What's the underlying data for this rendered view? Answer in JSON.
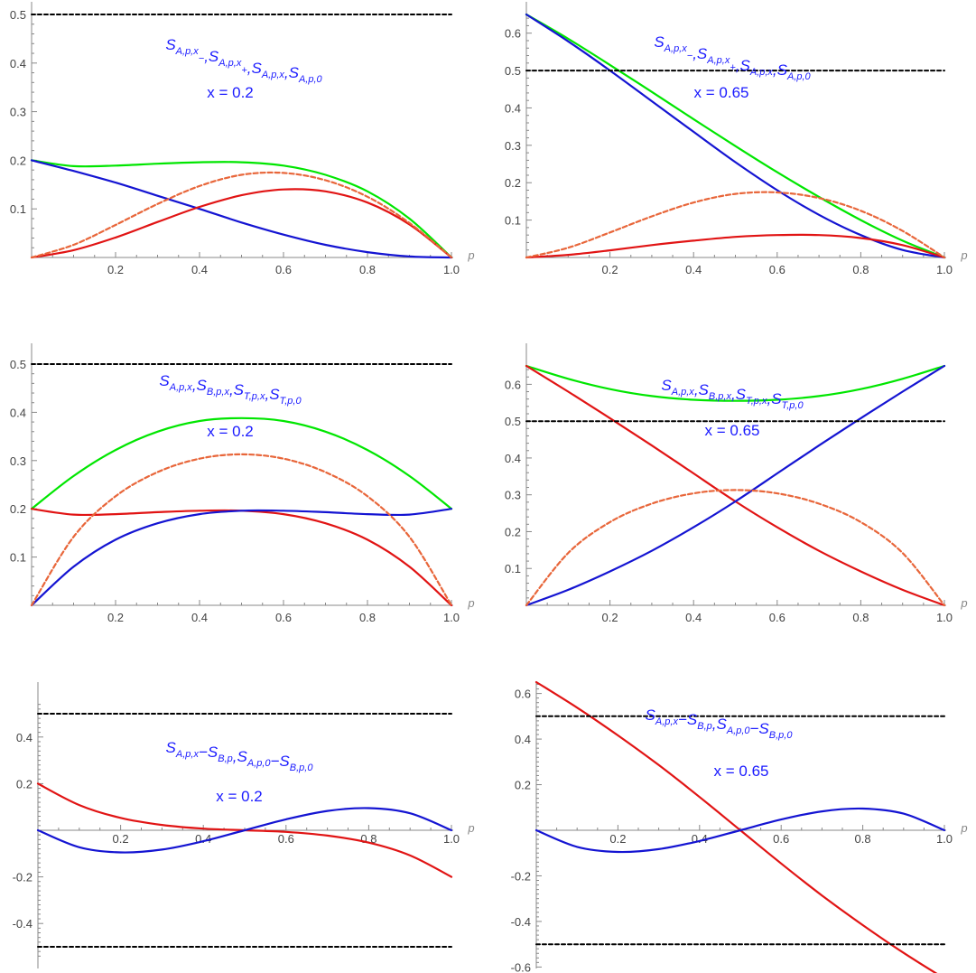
{
  "chart_data": [
    {
      "type": "line",
      "title": "S_{A,p,x_-},S_{A,p,x_+},S_{A,p,x},S_{A,p,0}",
      "title_parts": [
        {
          "t": "S",
          "s": "A,p,x"
        },
        {
          "t": "",
          "s": "−"
        },
        {
          "t": ",S",
          "s": "A,p,x"
        },
        {
          "t": "",
          "s": "+"
        },
        {
          "t": ",S",
          "s": "A,p,x"
        },
        {
          "t": ",S",
          "s": "A,p,0"
        }
      ],
      "annotation": "x = 0.2",
      "xlabel": "p",
      "xlim": [
        0,
        1
      ],
      "ylim": [
        -0.005,
        0.5
      ],
      "xticks": [
        0.2,
        0.4,
        0.6,
        0.8,
        1.0
      ],
      "xtick_labels": [
        "0.2",
        "0.4",
        "0.6",
        "0.8",
        "1.0"
      ],
      "yticks": [
        0.1,
        0.2,
        0.3,
        0.4,
        0.5
      ],
      "ytick_labels": [
        "0.1",
        "0.2",
        "0.3",
        "0.4",
        "0.5"
      ],
      "x": [
        0,
        0.1,
        0.2,
        0.3,
        0.4,
        0.5,
        0.6,
        0.7,
        0.8,
        0.9,
        1.0
      ],
      "series": [
        {
          "color": "#00e600",
          "dash": false,
          "values": [
            0.2,
            0.188,
            0.189,
            0.193,
            0.196,
            0.196,
            0.189,
            0.17,
            0.136,
            0.08,
            0
          ]
        },
        {
          "color": "#1414d2",
          "dash": false,
          "values": [
            0.2,
            0.178,
            0.154,
            0.127,
            0.1,
            0.072,
            0.047,
            0.026,
            0.011,
            0.002,
            0
          ]
        },
        {
          "color": "#e11414",
          "dash": false,
          "values": [
            0,
            0.015,
            0.041,
            0.073,
            0.104,
            0.128,
            0.14,
            0.136,
            0.113,
            0.068,
            0
          ]
        },
        {
          "color": "#e8663a",
          "dash": true,
          "values": [
            0,
            0.026,
            0.067,
            0.11,
            0.147,
            0.17,
            0.174,
            0.159,
            0.125,
            0.071,
            0
          ]
        },
        {
          "color": "#000000",
          "dash": true,
          "values": [
            0.5,
            0.5,
            0.5,
            0.5,
            0.5,
            0.5,
            0.5,
            0.5,
            0.5,
            0.5,
            0.5
          ]
        }
      ]
    },
    {
      "type": "line",
      "title": "S_{A,p,x_-},S_{A,p,x_+},S_{A,p,x},S_{A,p,0}",
      "title_parts": [
        {
          "t": "S",
          "s": "A,p,x"
        },
        {
          "t": "",
          "s": "−"
        },
        {
          "t": ",S",
          "s": "A,p,x"
        },
        {
          "t": "",
          "s": "+"
        },
        {
          "t": ",S",
          "s": "A,p,x"
        },
        {
          "t": ",S",
          "s": "A,p,0"
        }
      ],
      "annotation": "x = 0.65",
      "xlabel": "p",
      "xlim": [
        0,
        1
      ],
      "ylim": [
        -0.005,
        0.65
      ],
      "xticks": [
        0.2,
        0.4,
        0.6,
        0.8,
        1.0
      ],
      "xtick_labels": [
        "0.2",
        "0.4",
        "0.6",
        "0.8",
        "1.0"
      ],
      "yticks": [
        0.1,
        0.2,
        0.3,
        0.4,
        0.5,
        0.6
      ],
      "ytick_labels": [
        "0.1",
        "0.2",
        "0.3",
        "0.4",
        "0.5",
        "0.6"
      ],
      "x": [
        0,
        0.1,
        0.2,
        0.3,
        0.4,
        0.5,
        0.6,
        0.7,
        0.8,
        0.9,
        1.0
      ],
      "series": [
        {
          "color": "#00e600",
          "dash": false,
          "values": [
            0.65,
            0.585,
            0.515,
            0.443,
            0.37,
            0.298,
            0.228,
            0.162,
            0.1,
            0.045,
            0
          ]
        },
        {
          "color": "#1414d2",
          "dash": false,
          "values": [
            0.65,
            0.578,
            0.5,
            0.418,
            0.336,
            0.255,
            0.18,
            0.114,
            0.06,
            0.02,
            0
          ]
        },
        {
          "color": "#e11414",
          "dash": false,
          "values": [
            0,
            0.007,
            0.019,
            0.033,
            0.045,
            0.055,
            0.06,
            0.06,
            0.052,
            0.033,
            0
          ]
        },
        {
          "color": "#e8663a",
          "dash": true,
          "values": [
            0,
            0.026,
            0.067,
            0.11,
            0.147,
            0.17,
            0.174,
            0.159,
            0.125,
            0.071,
            0
          ]
        },
        {
          "color": "#000000",
          "dash": true,
          "values": [
            0.5,
            0.5,
            0.5,
            0.5,
            0.5,
            0.5,
            0.5,
            0.5,
            0.5,
            0.5,
            0.5
          ]
        }
      ]
    },
    {
      "type": "line",
      "title": "S_{A,p,x},S_{B,p,x},S_{T,p,x},S_{T,p,0}",
      "title_parts": [
        {
          "t": "S",
          "s": "A,p,x"
        },
        {
          "t": ",S",
          "s": "B,p,x"
        },
        {
          "t": ",S",
          "s": "T,p,x"
        },
        {
          "t": ",S",
          "s": "T,p,0"
        }
      ],
      "annotation": "x = 0.2",
      "xlabel": "p",
      "xlim": [
        0,
        1
      ],
      "ylim": [
        -0.005,
        0.5
      ],
      "xticks": [
        0.2,
        0.4,
        0.6,
        0.8,
        1.0
      ],
      "xtick_labels": [
        "0.2",
        "0.4",
        "0.6",
        "0.8",
        "1.0"
      ],
      "yticks": [
        0.1,
        0.2,
        0.3,
        0.4,
        0.5
      ],
      "ytick_labels": [
        "0.1",
        "0.2",
        "0.3",
        "0.4",
        "0.5"
      ],
      "x": [
        0,
        0.1,
        0.2,
        0.3,
        0.4,
        0.5,
        0.6,
        0.7,
        0.8,
        0.9,
        1.0
      ],
      "series": [
        {
          "color": "#00e600",
          "dash": false,
          "values": [
            0.2,
            0.268,
            0.322,
            0.36,
            0.382,
            0.388,
            0.382,
            0.36,
            0.322,
            0.268,
            0.2
          ]
        },
        {
          "color": "#e11414",
          "dash": false,
          "values": [
            0.2,
            0.188,
            0.189,
            0.193,
            0.196,
            0.196,
            0.189,
            0.17,
            0.136,
            0.08,
            0
          ]
        },
        {
          "color": "#1414d2",
          "dash": false,
          "values": [
            0,
            0.08,
            0.136,
            0.17,
            0.189,
            0.196,
            0.196,
            0.193,
            0.189,
            0.188,
            0.2
          ]
        },
        {
          "color": "#e8663a",
          "dash": true,
          "values": [
            0,
            0.142,
            0.226,
            0.276,
            0.304,
            0.313,
            0.304,
            0.276,
            0.226,
            0.142,
            0
          ]
        },
        {
          "color": "#000000",
          "dash": true,
          "values": [
            0.5,
            0.5,
            0.5,
            0.5,
            0.5,
            0.5,
            0.5,
            0.5,
            0.5,
            0.5,
            0.5
          ]
        }
      ]
    },
    {
      "type": "line",
      "title": "S_{A,p,x},S_{B,p,x},S_{T,p,x},S_{T,p,0}",
      "title_parts": [
        {
          "t": "S",
          "s": "A,p,x"
        },
        {
          "t": ",S",
          "s": "B,p,x"
        },
        {
          "t": ",S",
          "s": "T,p,x"
        },
        {
          "t": ",S",
          "s": "T,p,0"
        }
      ],
      "annotation": "x = 0.65",
      "xlabel": "p",
      "xlim": [
        0,
        1
      ],
      "ylim": [
        -0.005,
        0.65
      ],
      "xticks": [
        0.2,
        0.4,
        0.6,
        0.8,
        1.0
      ],
      "xtick_labels": [
        "0.2",
        "0.4",
        "0.6",
        "0.8",
        "1.0"
      ],
      "yticks": [
        0.1,
        0.2,
        0.3,
        0.4,
        0.5,
        0.6
      ],
      "ytick_labels": [
        "0.1",
        "0.2",
        "0.3",
        "0.4",
        "0.5",
        "0.6"
      ],
      "x": [
        0,
        0.1,
        0.2,
        0.3,
        0.4,
        0.5,
        0.6,
        0.7,
        0.8,
        0.9,
        1.0
      ],
      "series": [
        {
          "color": "#00e600",
          "dash": false,
          "values": [
            0.65,
            0.615,
            0.587,
            0.568,
            0.558,
            0.555,
            0.558,
            0.568,
            0.587,
            0.615,
            0.65
          ]
        },
        {
          "color": "#e11414",
          "dash": false,
          "values": [
            0.65,
            0.58,
            0.508,
            0.434,
            0.358,
            0.282,
            0.212,
            0.148,
            0.092,
            0.042,
            0
          ]
        },
        {
          "color": "#1414d2",
          "dash": false,
          "values": [
            0,
            0.042,
            0.092,
            0.148,
            0.212,
            0.282,
            0.358,
            0.434,
            0.508,
            0.58,
            0.65
          ]
        },
        {
          "color": "#e8663a",
          "dash": true,
          "values": [
            0,
            0.142,
            0.226,
            0.276,
            0.304,
            0.313,
            0.304,
            0.276,
            0.226,
            0.142,
            0
          ]
        },
        {
          "color": "#000000",
          "dash": true,
          "values": [
            0.5,
            0.5,
            0.5,
            0.5,
            0.5,
            0.5,
            0.5,
            0.5,
            0.5,
            0.5,
            0.5
          ]
        }
      ]
    },
    {
      "type": "line",
      "title": "S_{A,p,x}−S_{B,p},S_{A,p,0}−S_{B,p,0}",
      "title_parts": [
        {
          "t": "S",
          "s": "A,p,x"
        },
        {
          "t": "−S",
          "s": "B,p"
        },
        {
          "t": ",S",
          "s": "A,p,0"
        },
        {
          "t": "−S",
          "s": "B,p,0"
        }
      ],
      "annotation": "x = 0.2",
      "xlabel": "p",
      "xlim": [
        0,
        1
      ],
      "ylim": [
        -0.55,
        0.55
      ],
      "xticks": [
        0.2,
        0.4,
        0.6,
        0.8,
        1.0
      ],
      "xtick_labels": [
        "0.2",
        "0.4",
        "0.6",
        "0.8",
        "1.0"
      ],
      "yticks": [
        -0.4,
        -0.2,
        0.2,
        0.4
      ],
      "ytick_labels": [
        "-0.4",
        "-0.2",
        "0.2",
        "0.4"
      ],
      "x": [
        0,
        0.1,
        0.2,
        0.3,
        0.4,
        0.5,
        0.6,
        0.7,
        0.8,
        0.9,
        1.0
      ],
      "series": [
        {
          "color": "#e11414",
          "dash": false,
          "values": [
            0.2,
            0.108,
            0.053,
            0.023,
            0.007,
            0,
            -0.007,
            -0.023,
            -0.053,
            -0.108,
            -0.2
          ]
        },
        {
          "color": "#1414d2",
          "dash": false,
          "values": [
            0,
            -0.073,
            -0.095,
            -0.083,
            -0.047,
            0,
            0.047,
            0.083,
            0.095,
            0.073,
            0
          ]
        },
        {
          "color": "#000000",
          "dash": true,
          "values": [
            0.5,
            0.5,
            0.5,
            0.5,
            0.5,
            0.5,
            0.5,
            0.5,
            0.5,
            0.5,
            0.5
          ]
        },
        {
          "color": "#000000",
          "dash": true,
          "values": [
            -0.5,
            -0.5,
            -0.5,
            -0.5,
            -0.5,
            -0.5,
            -0.5,
            -0.5,
            -0.5,
            -0.5,
            -0.5
          ]
        }
      ]
    },
    {
      "type": "line",
      "title": "S_{A,p,x}−S_{B,p},S_{A,p,0}−S_{B,p,0}",
      "title_parts": [
        {
          "t": "S",
          "s": "A,p,x"
        },
        {
          "t": "−S",
          "s": "B,p"
        },
        {
          "t": ",S",
          "s": "A,p,0"
        },
        {
          "t": "−S",
          "s": "B,p,0"
        }
      ],
      "annotation": "x = 0.65",
      "xlabel": "p",
      "xlim": [
        0,
        1
      ],
      "ylim": [
        -0.68,
        0.68
      ],
      "xticks": [
        0.2,
        0.4,
        0.6,
        0.8,
        1.0
      ],
      "xtick_labels": [
        "0.2",
        "0.4",
        "0.6",
        "0.8",
        "1.0"
      ],
      "yticks": [
        -0.6,
        -0.4,
        -0.2,
        0.2,
        0.4,
        0.6
      ],
      "ytick_labels": [
        "-0.6",
        "-0.4",
        "-0.2",
        "0.2",
        "0.4",
        "0.6"
      ],
      "x": [
        0,
        0.1,
        0.2,
        0.3,
        0.4,
        0.5,
        0.6,
        0.7,
        0.8,
        0.9,
        1.0
      ],
      "series": [
        {
          "color": "#e11414",
          "dash": false,
          "values": [
            0.65,
            0.538,
            0.416,
            0.286,
            0.146,
            0,
            -0.146,
            -0.286,
            -0.416,
            -0.538,
            -0.65
          ]
        },
        {
          "color": "#1414d2",
          "dash": false,
          "values": [
            0,
            -0.073,
            -0.095,
            -0.083,
            -0.047,
            0,
            0.047,
            0.083,
            0.095,
            0.073,
            0
          ]
        },
        {
          "color": "#000000",
          "dash": true,
          "values": [
            0.5,
            0.5,
            0.5,
            0.5,
            0.5,
            0.5,
            0.5,
            0.5,
            0.5,
            0.5,
            0.5
          ]
        },
        {
          "color": "#000000",
          "dash": true,
          "values": [
            -0.5,
            -0.5,
            -0.5,
            -0.5,
            -0.5,
            -0.5,
            -0.5,
            -0.5,
            -0.5,
            -0.5,
            -0.5
          ]
        }
      ]
    }
  ]
}
